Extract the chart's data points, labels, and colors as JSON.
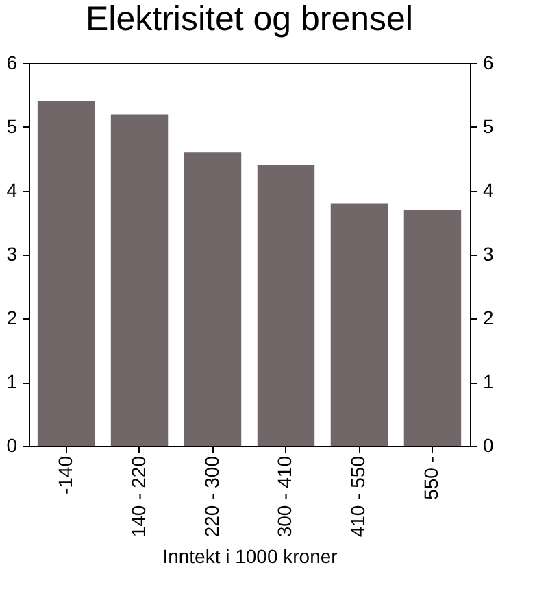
{
  "chart_data": {
    "type": "bar",
    "title": "Elektrisitet og brensel",
    "xlabel": "Inntekt i 1000 kroner",
    "categories": [
      "-140",
      "140 - 220",
      "220 - 300",
      "300 - 410",
      "410 - 550",
      "550 -"
    ],
    "values": [
      5.4,
      5.2,
      4.6,
      4.4,
      3.8,
      3.7
    ],
    "color": "#716769",
    "ylim": [
      0,
      6
    ],
    "yticks": [
      0,
      1,
      2,
      3,
      4,
      5,
      6
    ],
    "y2lim": [
      0,
      6
    ],
    "y2ticks": [
      0,
      1,
      2,
      3,
      4,
      5,
      6
    ],
    "grid": false
  }
}
